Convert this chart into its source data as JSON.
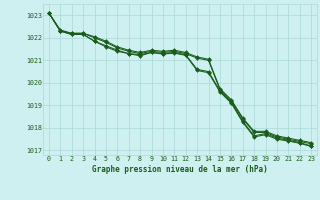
{
  "title": "Graphe pression niveau de la mer (hPa)",
  "background_color": "#cff0f0",
  "grid_color": "#aad8d8",
  "line_color": "#1a5c1a",
  "xlim": [
    -0.5,
    23.5
  ],
  "ylim": [
    1016.8,
    1023.5
  ],
  "yticks": [
    1017,
    1018,
    1019,
    1020,
    1021,
    1022,
    1023
  ],
  "xtick_labels": [
    "0",
    "1",
    "2",
    "3",
    "4",
    "5",
    "6",
    "7",
    "8",
    "9",
    "10",
    "11",
    "12",
    "13",
    "14",
    "15",
    "16",
    "17",
    "18",
    "19",
    "20",
    "21",
    "22",
    "23"
  ],
  "series": [
    [
      1023.1,
      1022.35,
      1022.2,
      1022.2,
      1022.05,
      1021.85,
      1021.6,
      1021.45,
      1021.35,
      1021.45,
      1021.4,
      1021.45,
      1021.35,
      1021.15,
      1021.05,
      1019.75,
      1019.25,
      1018.45,
      1017.85,
      1017.85,
      1017.65,
      1017.55,
      1017.45,
      1017.35
    ],
    [
      1023.1,
      1022.3,
      1022.2,
      1022.2,
      1022.0,
      1021.8,
      1021.55,
      1021.4,
      1021.3,
      1021.4,
      1021.35,
      1021.4,
      1021.3,
      1021.1,
      1021.0,
      1019.7,
      1019.2,
      1018.4,
      1017.8,
      1017.8,
      1017.6,
      1017.5,
      1017.4,
      1017.3
    ],
    [
      1023.1,
      1022.3,
      1022.15,
      1022.15,
      1021.85,
      1021.65,
      1021.45,
      1021.3,
      1021.25,
      1021.35,
      1021.3,
      1021.35,
      1021.25,
      1020.6,
      1020.5,
      1019.65,
      1019.15,
      1018.3,
      1017.65,
      1017.75,
      1017.55,
      1017.45,
      1017.35,
      1017.2
    ],
    [
      1023.1,
      1022.3,
      1022.15,
      1022.15,
      1021.85,
      1021.6,
      1021.4,
      1021.3,
      1021.2,
      1021.35,
      1021.28,
      1021.32,
      1021.22,
      1020.55,
      1020.45,
      1019.6,
      1019.1,
      1018.25,
      1017.6,
      1017.7,
      1017.5,
      1017.42,
      1017.32,
      1017.18
    ]
  ]
}
